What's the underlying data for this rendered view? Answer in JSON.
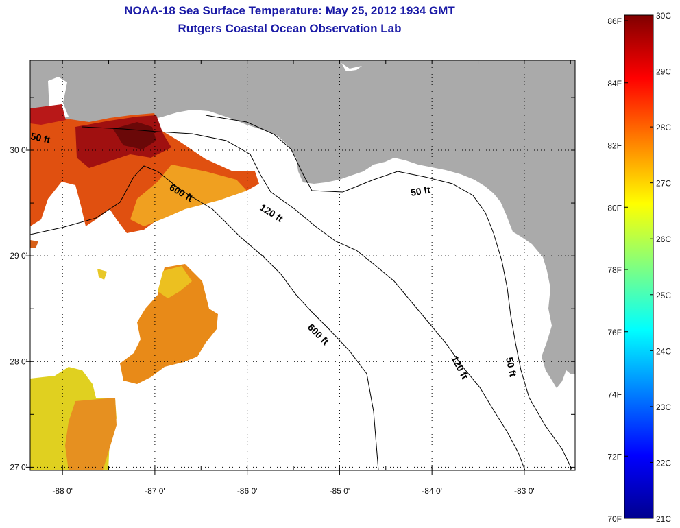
{
  "header": {
    "title": "NOAA-18 Sea Surface Temperature:  May 25, 2012 1934 GMT",
    "subtitle": "Rutgers Coastal Ocean Observation Lab"
  },
  "map": {
    "lat_range": [
      26.97,
      30.85
    ],
    "lon_range": [
      -88.35,
      -82.45
    ],
    "lat_ticks": [
      {
        "value": 30,
        "label": "30 0'"
      },
      {
        "value": 29,
        "label": "29 0'"
      },
      {
        "value": 28,
        "label": "28 0'"
      },
      {
        "value": 27,
        "label": "27 0'"
      }
    ],
    "lon_ticks": [
      {
        "value": -88,
        "label": "-88 0'"
      },
      {
        "value": -87,
        "label": "-87 0'"
      },
      {
        "value": -86,
        "label": "-86 0'"
      },
      {
        "value": -85,
        "label": "-85 0'"
      },
      {
        "value": -84,
        "label": "-84 0'"
      },
      {
        "value": -83,
        "label": "-83 0'"
      }
    ],
    "contour_labels": [
      "50 ft",
      "600 ft",
      "120 ft",
      "50 ft",
      "600 ft",
      "120 ft",
      "50 ft"
    ],
    "land_color": "#aaaaaa",
    "water_color": "#ffffff"
  },
  "colorbar": {
    "colors": [
      "#00008f",
      "#0000ff",
      "#0080ff",
      "#00ffff",
      "#80ff80",
      "#ffff00",
      "#ff8000",
      "#ff0000",
      "#800000"
    ],
    "fahrenheit_labels": [
      "86F",
      "84F",
      "82F",
      "80F",
      "78F",
      "76F",
      "74F",
      "72F",
      "70F"
    ],
    "celsius_labels": [
      "30C",
      "29C",
      "28C",
      "27C",
      "26C",
      "25C",
      "24C",
      "23C",
      "22C",
      "21C"
    ]
  }
}
